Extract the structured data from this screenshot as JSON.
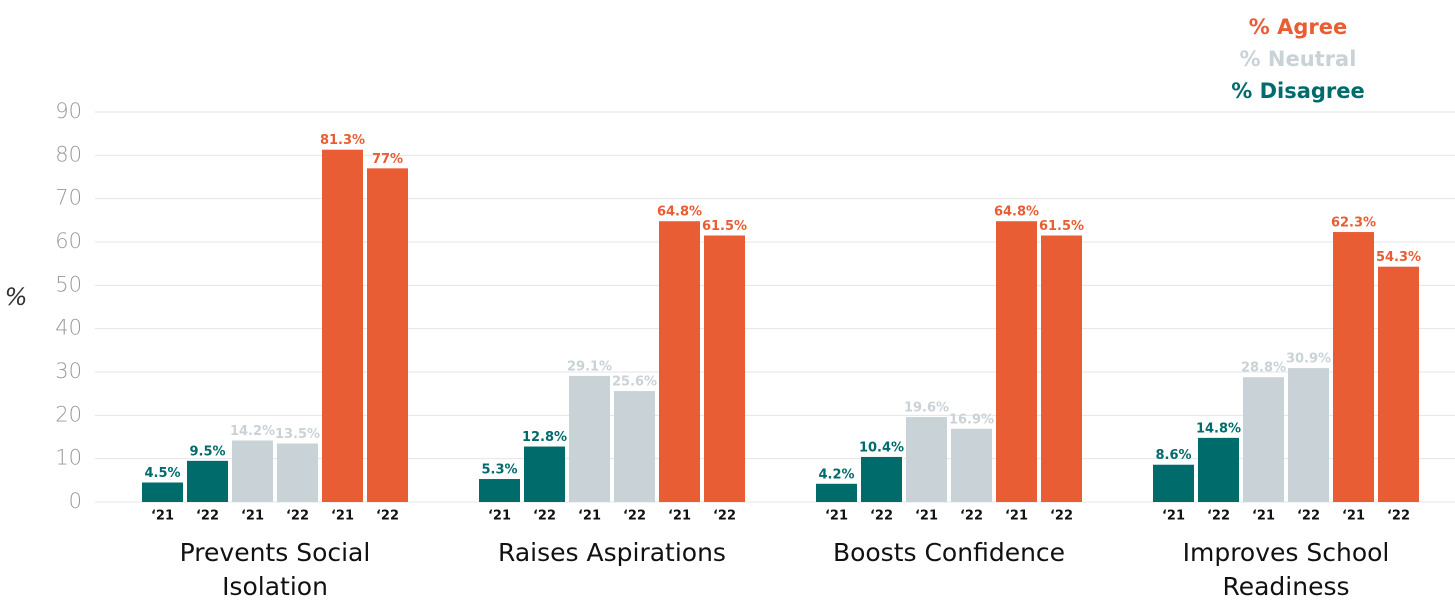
{
  "chart_data": {
    "type": "grouped-bar",
    "ylabel": "%",
    "categories": [
      "Prevents Social Isolation",
      "Raises Aspirations",
      "Boosts Confidence",
      "Improves School Readiness"
    ],
    "years": [
      "‘21",
      "‘22"
    ],
    "series": [
      {
        "name": "% Disagree",
        "color": "#006b6b",
        "values": [
          [
            4.5,
            9.5
          ],
          [
            5.3,
            12.8
          ],
          [
            4.2,
            10.4
          ],
          [
            8.6,
            14.8
          ]
        ],
        "value_labels": [
          [
            "4.5%",
            "9.5%"
          ],
          [
            "5.3%",
            "12.8%"
          ],
          [
            "4.2%",
            "10.4%"
          ],
          [
            "8.6%",
            "14.8%"
          ]
        ]
      },
      {
        "name": "% Neutral",
        "color": "#c9d3d7",
        "values": [
          [
            14.2,
            13.5
          ],
          [
            29.1,
            25.6
          ],
          [
            19.6,
            16.9
          ],
          [
            28.8,
            30.9
          ]
        ],
        "value_labels": [
          [
            "14.2%",
            "13.5%"
          ],
          [
            "29.1%",
            "25.6%"
          ],
          [
            "19.6%",
            "16.9%"
          ],
          [
            "28.8%",
            "30.9%"
          ]
        ]
      },
      {
        "name": "% Agree",
        "color": "#e95d35",
        "values": [
          [
            81.3,
            77
          ],
          [
            64.8,
            61.5
          ],
          [
            64.8,
            61.5
          ],
          [
            62.3,
            54.3
          ]
        ],
        "value_labels": [
          [
            "81.3%",
            "77%"
          ],
          [
            "64.8%",
            "61.5%"
          ],
          [
            "64.8%",
            "61.5%"
          ],
          [
            "62.3%",
            "54.3%"
          ]
        ]
      }
    ],
    "ylim": [
      0,
      90
    ],
    "yticks": [
      0,
      10,
      20,
      30,
      40,
      50,
      60,
      70,
      80,
      90
    ],
    "grid": true,
    "legend": "top-right"
  }
}
